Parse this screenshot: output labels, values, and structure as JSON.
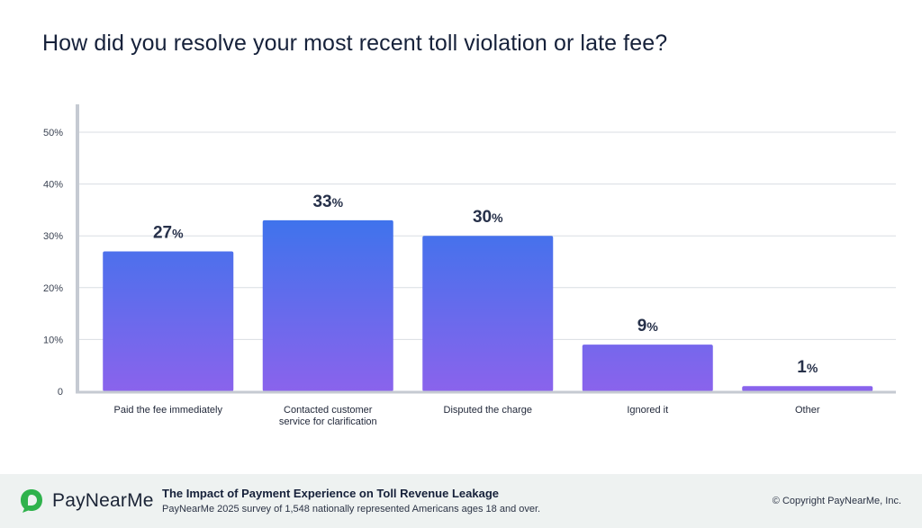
{
  "title": "How did you resolve your most recent toll violation or late fee?",
  "chart_data": {
    "type": "bar",
    "categories": [
      [
        "Paid the fee immediately"
      ],
      [
        "Contacted customer",
        "service for clarification"
      ],
      [
        "Disputed the charge"
      ],
      [
        "Ignored it"
      ],
      [
        "Other"
      ]
    ],
    "values": [
      27,
      33,
      30,
      9,
      1
    ],
    "data_labels": [
      "27%",
      "33%",
      "30%",
      "9%",
      "1%"
    ],
    "ylim": [
      0,
      50
    ],
    "yticks": [
      0,
      10,
      20,
      30,
      40,
      50
    ],
    "ytick_labels": [
      "0",
      "10%",
      "20%",
      "30%",
      "40%",
      "50%"
    ],
    "grid": true,
    "gradient": {
      "top": "#3f73ec",
      "bottom": "#8a63ec"
    },
    "colors": {
      "gridline": "#d9dde3",
      "axis": "#c5cad2",
      "tick_text": "#3a4252",
      "label_text": "#27314a",
      "category_text": "#1f2638"
    }
  },
  "footer": {
    "brand": "PayNearMe",
    "brand_color": "#2fb24c",
    "report_title": "The Impact of Payment Experience on Toll Revenue Leakage",
    "report_subtitle": "PayNearMe 2025 survey of 1,548 nationally represented Americans ages 18 and over.",
    "copyright": "© Copyright PayNearMe, Inc."
  }
}
